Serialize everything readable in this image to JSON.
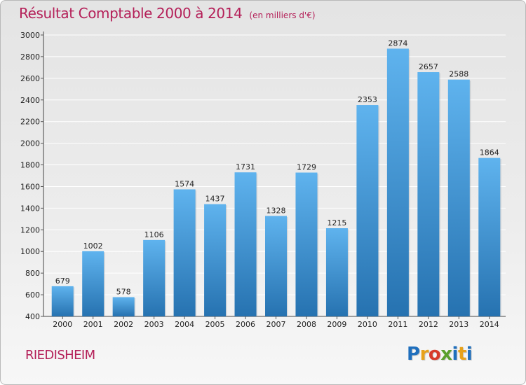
{
  "title": "Résultat Comptable 2000 à 2014",
  "subtitle": "(en milliers d'€)",
  "commune": "RIEDISHEIM",
  "logo": {
    "letters": [
      {
        "char": "P",
        "color": "#1f6fbd"
      },
      {
        "char": "r",
        "color": "#e7a21b"
      },
      {
        "char": "o",
        "color": "#d73b2b"
      },
      {
        "char": "x",
        "color": "#5aa02c"
      },
      {
        "char": "i",
        "color": "#1f6fbd"
      },
      {
        "char": "t",
        "color": "#e7a21b"
      },
      {
        "char": "i",
        "color": "#1f6fbd"
      }
    ]
  },
  "colors": {
    "title": "#b41f58",
    "bar_top": "#5fb3ee",
    "bar_bottom": "#2672b0",
    "grid": "#ffffff"
  },
  "chart_data": {
    "type": "bar",
    "title": "Résultat Comptable 2000 à 2014",
    "subtitle": "(en milliers d'€)",
    "categories": [
      "2000",
      "2001",
      "2002",
      "2003",
      "2004",
      "2005",
      "2006",
      "2007",
      "2008",
      "2009",
      "2010",
      "2011",
      "2012",
      "2013",
      "2014"
    ],
    "values": [
      679,
      1002,
      578,
      1106,
      1574,
      1437,
      1731,
      1328,
      1729,
      1215,
      2353,
      2874,
      2657,
      2588,
      1864
    ],
    "ylim": [
      400,
      3000
    ],
    "yticks": [
      400,
      600,
      800,
      1000,
      1200,
      1400,
      1600,
      1800,
      2000,
      2200,
      2400,
      2600,
      2800,
      3000
    ],
    "grid": true,
    "data_labels": true
  }
}
